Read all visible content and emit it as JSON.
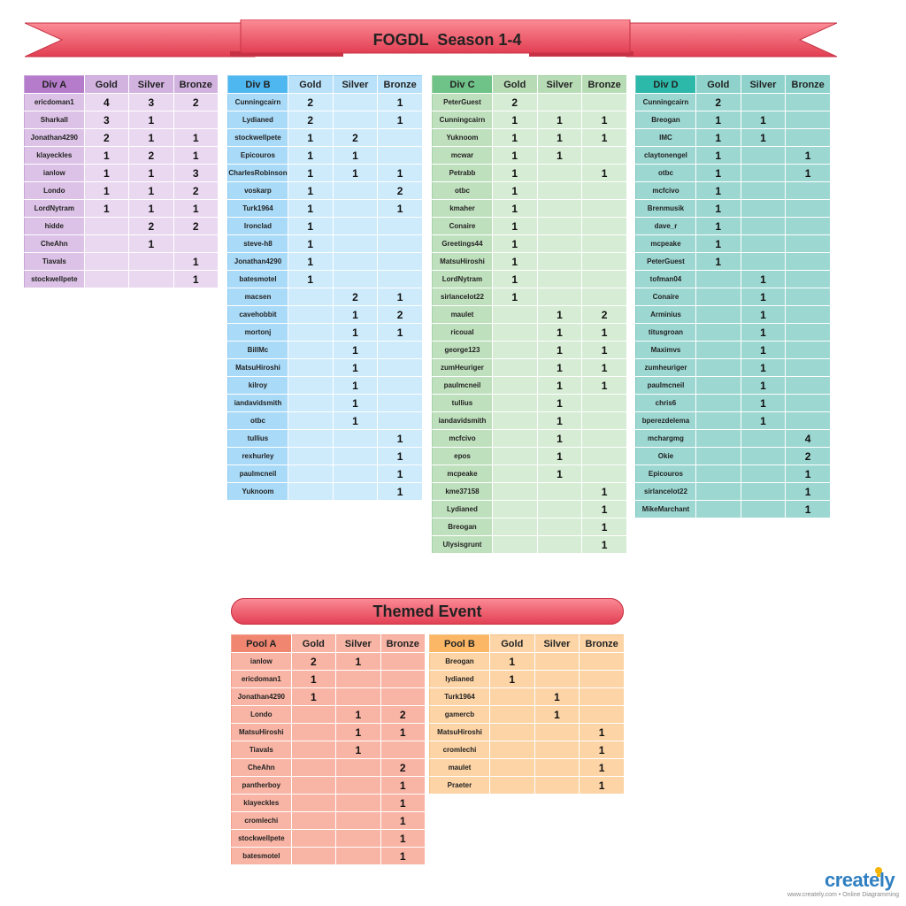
{
  "title": "FOGDL  Season 1-4",
  "themed_title": "Themed Event",
  "col_labels": [
    "Gold",
    "Silver",
    "Bronze"
  ],
  "season": {
    "div_a": {
      "label": "Div A",
      "rows": [
        [
          "ericdoman1",
          "4",
          "3",
          "2"
        ],
        [
          "Sharkall",
          "3",
          "1",
          ""
        ],
        [
          "Jonathan4290",
          "2",
          "1",
          "1"
        ],
        [
          "klayeckles",
          "1",
          "2",
          "1"
        ],
        [
          "ianlow",
          "1",
          "1",
          "3"
        ],
        [
          "Londo",
          "1",
          "1",
          "2"
        ],
        [
          "LordNytram",
          "1",
          "1",
          "1"
        ],
        [
          "hidde",
          "",
          "2",
          "2"
        ],
        [
          "CheAhn",
          "",
          "1",
          ""
        ],
        [
          "Tiavals",
          "",
          "",
          "1"
        ],
        [
          "stockwellpete",
          "",
          "",
          "1"
        ]
      ]
    },
    "div_b": {
      "label": "Div B",
      "rows": [
        [
          "Cunningcairn",
          "2",
          "",
          "1"
        ],
        [
          "Lydianed",
          "2",
          "",
          "1"
        ],
        [
          "stockwellpete",
          "1",
          "2",
          ""
        ],
        [
          "Epicouros",
          "1",
          "1",
          ""
        ],
        [
          "CharlesRobinson",
          "1",
          "1",
          "1"
        ],
        [
          "voskarp",
          "1",
          "",
          "2"
        ],
        [
          "Turk1964",
          "1",
          "",
          "1"
        ],
        [
          "Ironclad",
          "1",
          "",
          ""
        ],
        [
          "steve-h8",
          "1",
          "",
          ""
        ],
        [
          "Jonathan4290",
          "1",
          "",
          ""
        ],
        [
          "batesmotel",
          "1",
          "",
          ""
        ],
        [
          "macsen",
          "",
          "2",
          "1"
        ],
        [
          "cavehobbit",
          "",
          "1",
          "2"
        ],
        [
          "mortonj",
          "",
          "1",
          "1"
        ],
        [
          "BillMc",
          "",
          "1",
          ""
        ],
        [
          "MatsuHiroshi",
          "",
          "1",
          ""
        ],
        [
          "kilroy",
          "",
          "1",
          ""
        ],
        [
          "iandavidsmith",
          "",
          "1",
          ""
        ],
        [
          "otbc",
          "",
          "1",
          ""
        ],
        [
          "tullius",
          "",
          "",
          "1"
        ],
        [
          "rexhurley",
          "",
          "",
          "1"
        ],
        [
          "paulmcneil",
          "",
          "",
          "1"
        ],
        [
          "Yuknoom",
          "",
          "",
          "1"
        ]
      ]
    },
    "div_c": {
      "label": "Div C",
      "rows": [
        [
          "PeterGuest",
          "2",
          "",
          ""
        ],
        [
          "Cunningcairn",
          "1",
          "1",
          "1"
        ],
        [
          "Yuknoom",
          "1",
          "1",
          "1"
        ],
        [
          "mcwar",
          "1",
          "1",
          ""
        ],
        [
          "Petrabb",
          "1",
          "",
          "1"
        ],
        [
          "otbc",
          "1",
          "",
          ""
        ],
        [
          "kmaher",
          "1",
          "",
          ""
        ],
        [
          "Conaire",
          "1",
          "",
          ""
        ],
        [
          "Greetings44",
          "1",
          "",
          ""
        ],
        [
          "MatsuHiroshi",
          "1",
          "",
          ""
        ],
        [
          "LordNytram",
          "1",
          "",
          ""
        ],
        [
          "sirlancelot22",
          "1",
          "",
          ""
        ],
        [
          "maulet",
          "",
          "1",
          "2"
        ],
        [
          "ricoual",
          "",
          "1",
          "1"
        ],
        [
          "george123",
          "",
          "1",
          "1"
        ],
        [
          "zumHeuriger",
          "",
          "1",
          "1"
        ],
        [
          "paulmcneil",
          "",
          "1",
          "1"
        ],
        [
          "tullius",
          "",
          "1",
          ""
        ],
        [
          "iandavidsmith",
          "",
          "1",
          ""
        ],
        [
          "mcfcivo",
          "",
          "1",
          ""
        ],
        [
          "epos",
          "",
          "1",
          ""
        ],
        [
          "mcpeake",
          "",
          "1",
          ""
        ],
        [
          "kme37158",
          "",
          "",
          "1"
        ],
        [
          "Lydianed",
          "",
          "",
          "1"
        ],
        [
          "Breogan",
          "",
          "",
          "1"
        ],
        [
          "Ulysisgrunt",
          "",
          "",
          "1"
        ]
      ]
    },
    "div_d": {
      "label": "Div D",
      "rows": [
        [
          "Cunningcairn",
          "2",
          "",
          ""
        ],
        [
          "Breogan",
          "1",
          "1",
          ""
        ],
        [
          "IMC",
          "1",
          "1",
          ""
        ],
        [
          "claytonengel",
          "1",
          "",
          "1"
        ],
        [
          "otbc",
          "1",
          "",
          "1"
        ],
        [
          "mcfcivo",
          "1",
          "",
          ""
        ],
        [
          "Brenmusik",
          "1",
          "",
          ""
        ],
        [
          "dave_r",
          "1",
          "",
          ""
        ],
        [
          "mcpeake",
          "1",
          "",
          ""
        ],
        [
          "PeterGuest",
          "1",
          "",
          ""
        ],
        [
          "tofman04",
          "",
          "1",
          ""
        ],
        [
          "Conaire",
          "",
          "1",
          ""
        ],
        [
          "Arminius",
          "",
          "1",
          ""
        ],
        [
          "titusgroan",
          "",
          "1",
          ""
        ],
        [
          "Maximvs",
          "",
          "1",
          ""
        ],
        [
          "zumheuriger",
          "",
          "1",
          ""
        ],
        [
          "paulmcneil",
          "",
          "1",
          ""
        ],
        [
          "chris6",
          "",
          "1",
          ""
        ],
        [
          "bperezdelema",
          "",
          "1",
          ""
        ],
        [
          "mchargmg",
          "",
          "",
          "4"
        ],
        [
          "Okie",
          "",
          "",
          "2"
        ],
        [
          "Epicouros",
          "",
          "",
          "1"
        ],
        [
          "sirlancelot22",
          "",
          "",
          "1"
        ],
        [
          "MikeMarchant",
          "",
          "",
          "1"
        ]
      ]
    }
  },
  "themed": {
    "pool_a": {
      "label": "Pool A",
      "rows": [
        [
          "ianlow",
          "2",
          "1",
          ""
        ],
        [
          "ericdoman1",
          "1",
          "",
          ""
        ],
        [
          "Jonathan4290",
          "1",
          "",
          ""
        ],
        [
          "Londo",
          "",
          "1",
          "2"
        ],
        [
          "MatsuHiroshi",
          "",
          "1",
          "1"
        ],
        [
          "Tiavals",
          "",
          "1",
          ""
        ],
        [
          "CheAhn",
          "",
          "",
          "2"
        ],
        [
          "pantherboy",
          "",
          "",
          "1"
        ],
        [
          "klayeckles",
          "",
          "",
          "1"
        ],
        [
          "cromlechi",
          "",
          "",
          "1"
        ],
        [
          "stockwellpete",
          "",
          "",
          "1"
        ],
        [
          "batesmotel",
          "",
          "",
          "1"
        ]
      ]
    },
    "pool_b": {
      "label": "Pool B",
      "rows": [
        [
          "Breogan",
          "1",
          "",
          ""
        ],
        [
          "lydianed",
          "1",
          "",
          ""
        ],
        [
          "Turk1964",
          "",
          "1",
          ""
        ],
        [
          "gamercb",
          "",
          "1",
          ""
        ],
        [
          "MatsuHiroshi",
          "",
          "",
          "1"
        ],
        [
          "cromlechi",
          "",
          "",
          "1"
        ],
        [
          "maulet",
          "",
          "",
          "1"
        ],
        [
          "Praeter",
          "",
          "",
          "1"
        ]
      ]
    }
  },
  "logo": {
    "word": "creately",
    "tagline": "www.creately.com • Online Diagramming",
    "icon": "lightbulb-icon"
  }
}
